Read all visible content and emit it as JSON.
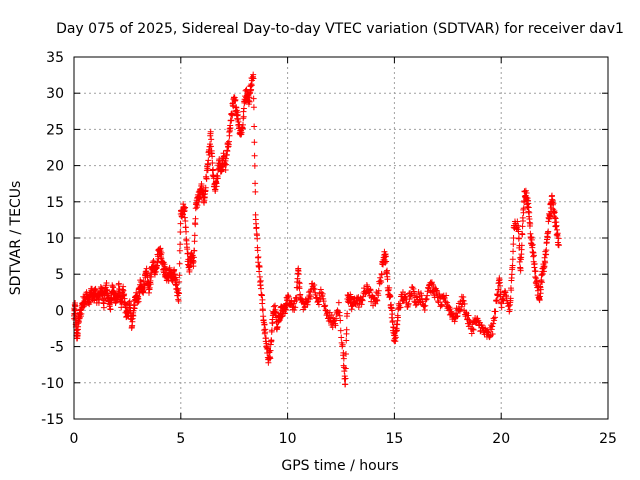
{
  "chart_data": {
    "type": "scatter",
    "title": "Day 075 of 2025, Sidereal Day-to-day VTEC variation (SDTVAR) for receiver dav1",
    "xlabel": "GPS time / hours",
    "ylabel": "SDTVAR / TECUs",
    "xlim": [
      0,
      25
    ],
    "ylim": [
      -15,
      35
    ],
    "x_ticks": [
      0,
      5,
      10,
      15,
      20,
      25
    ],
    "y_ticks": [
      -15,
      -10,
      -5,
      0,
      5,
      10,
      15,
      20,
      25,
      30,
      35
    ],
    "x_tick_labels": [
      "0",
      "5",
      "10",
      "15",
      "20",
      "25"
    ],
    "y_tick_labels": [
      "-15",
      "-10",
      "-5",
      "0",
      "5",
      "10",
      "15",
      "20",
      "25",
      "30",
      "35"
    ],
    "grid": true,
    "marker": "+",
    "series": [
      {
        "name": "SDTVAR",
        "color": "#ff0000",
        "anchors": [
          [
            0.0,
            -1.0
          ],
          [
            0.05,
            0.5
          ],
          [
            0.1,
            -2.5
          ],
          [
            0.15,
            -4.0
          ],
          [
            0.2,
            -1.5
          ],
          [
            0.3,
            -0.5
          ],
          [
            0.4,
            1.0
          ],
          [
            0.5,
            1.5
          ],
          [
            0.6,
            2.0
          ],
          [
            0.7,
            1.2
          ],
          [
            0.8,
            2.5
          ],
          [
            0.9,
            1.8
          ],
          [
            1.0,
            2.5
          ],
          [
            1.1,
            1.5
          ],
          [
            1.2,
            2.0
          ],
          [
            1.3,
            3.0
          ],
          [
            1.4,
            1.0
          ],
          [
            1.5,
            3.5
          ],
          [
            1.6,
            2.0
          ],
          [
            1.7,
            0.5
          ],
          [
            1.8,
            3.0
          ],
          [
            1.9,
            2.0
          ],
          [
            2.0,
            1.5
          ],
          [
            2.1,
            3.0
          ],
          [
            2.2,
            1.0
          ],
          [
            2.3,
            2.5
          ],
          [
            2.4,
            0.5
          ],
          [
            2.5,
            -1.0
          ],
          [
            2.6,
            1.0
          ],
          [
            2.7,
            -2.0
          ],
          [
            2.8,
            0.5
          ],
          [
            2.9,
            2.0
          ],
          [
            3.0,
            1.5
          ],
          [
            3.1,
            3.5
          ],
          [
            3.2,
            2.5
          ],
          [
            3.3,
            4.0
          ],
          [
            3.4,
            5.0
          ],
          [
            3.5,
            3.0
          ],
          [
            3.6,
            4.5
          ],
          [
            3.7,
            6.5
          ],
          [
            3.8,
            5.5
          ],
          [
            3.9,
            7.0
          ],
          [
            4.0,
            8.5
          ],
          [
            4.1,
            7.5
          ],
          [
            4.2,
            6.0
          ],
          [
            4.3,
            5.0
          ],
          [
            4.4,
            4.5
          ],
          [
            4.5,
            5.5
          ],
          [
            4.6,
            4.0
          ],
          [
            4.7,
            5.0
          ],
          [
            4.8,
            3.5
          ],
          [
            4.9,
            1.5
          ],
          [
            5.0,
            13.0
          ],
          [
            5.1,
            14.0
          ],
          [
            5.2,
            13.5
          ],
          [
            5.3,
            8.0
          ],
          [
            5.4,
            6.0
          ],
          [
            5.5,
            7.5
          ],
          [
            5.6,
            6.5
          ],
          [
            5.7,
            14.0
          ],
          [
            5.8,
            15.5
          ],
          [
            5.9,
            16.0
          ],
          [
            6.0,
            17.0
          ],
          [
            6.1,
            15.0
          ],
          [
            6.2,
            18.5
          ],
          [
            6.3,
            21.0
          ],
          [
            6.4,
            24.0
          ],
          [
            6.5,
            19.0
          ],
          [
            6.6,
            16.5
          ],
          [
            6.7,
            18.0
          ],
          [
            6.8,
            20.5
          ],
          [
            6.9,
            19.5
          ],
          [
            7.0,
            21.0
          ],
          [
            7.1,
            20.0
          ],
          [
            7.2,
            22.5
          ],
          [
            7.3,
            25.0
          ],
          [
            7.4,
            27.5
          ],
          [
            7.5,
            29.0
          ],
          [
            7.6,
            28.0
          ],
          [
            7.7,
            26.0
          ],
          [
            7.8,
            24.5
          ],
          [
            7.9,
            25.5
          ],
          [
            8.0,
            29.5
          ],
          [
            8.1,
            30.0
          ],
          [
            8.2,
            29.0
          ],
          [
            8.3,
            31.5
          ],
          [
            8.4,
            32.0
          ],
          [
            8.5,
            14.0
          ],
          [
            8.6,
            8.0
          ],
          [
            8.7,
            5.0
          ],
          [
            8.8,
            1.5
          ],
          [
            8.9,
            -2.0
          ],
          [
            9.0,
            -4.5
          ],
          [
            9.1,
            -6.5
          ],
          [
            9.2,
            -6.0
          ],
          [
            9.3,
            -1.0
          ],
          [
            9.4,
            0.5
          ],
          [
            9.5,
            -2.0
          ],
          [
            9.6,
            -1.0
          ],
          [
            9.7,
            0.0
          ],
          [
            9.8,
            -0.5
          ],
          [
            9.9,
            0.5
          ],
          [
            10.0,
            1.5
          ],
          [
            10.2,
            0.5
          ],
          [
            10.4,
            1.0
          ],
          [
            10.5,
            6.0
          ],
          [
            10.6,
            1.5
          ],
          [
            10.8,
            0.5
          ],
          [
            11.0,
            2.0
          ],
          [
            11.2,
            3.5
          ],
          [
            11.4,
            1.0
          ],
          [
            11.6,
            2.5
          ],
          [
            11.8,
            -0.5
          ],
          [
            12.0,
            -1.0
          ],
          [
            12.2,
            -2.0
          ],
          [
            12.4,
            0.5
          ],
          [
            12.6,
            -6.0
          ],
          [
            12.7,
            -10.0
          ],
          [
            12.8,
            1.5
          ],
          [
            12.9,
            2.0
          ],
          [
            13.0,
            0.5
          ],
          [
            13.2,
            1.5
          ],
          [
            13.4,
            1.0
          ],
          [
            13.6,
            2.5
          ],
          [
            13.8,
            3.0
          ],
          [
            14.0,
            1.0
          ],
          [
            14.2,
            2.0
          ],
          [
            14.4,
            5.0
          ],
          [
            14.5,
            8.0
          ],
          [
            14.6,
            7.0
          ],
          [
            14.7,
            3.0
          ],
          [
            14.8,
            2.0
          ],
          [
            14.9,
            -1.0
          ],
          [
            15.0,
            -4.0
          ],
          [
            15.1,
            -3.0
          ],
          [
            15.2,
            0.5
          ],
          [
            15.4,
            2.0
          ],
          [
            15.6,
            1.0
          ],
          [
            15.8,
            3.0
          ],
          [
            16.0,
            1.5
          ],
          [
            16.2,
            2.0
          ],
          [
            16.4,
            0.5
          ],
          [
            16.6,
            3.5
          ],
          [
            16.8,
            3.0
          ],
          [
            17.0,
            2.0
          ],
          [
            17.2,
            1.0
          ],
          [
            17.4,
            1.5
          ],
          [
            17.6,
            0.0
          ],
          [
            17.8,
            -1.0
          ],
          [
            18.0,
            0.0
          ],
          [
            18.2,
            1.5
          ],
          [
            18.4,
            -1.0
          ],
          [
            18.6,
            -2.5
          ],
          [
            18.8,
            -1.5
          ],
          [
            19.0,
            -2.0
          ],
          [
            19.2,
            -3.0
          ],
          [
            19.4,
            -3.5
          ],
          [
            19.6,
            -2.5
          ],
          [
            19.8,
            1.5
          ],
          [
            19.9,
            4.5
          ],
          [
            20.0,
            1.0
          ],
          [
            20.2,
            2.0
          ],
          [
            20.4,
            0.0
          ],
          [
            20.5,
            4.5
          ],
          [
            20.6,
            12.0
          ],
          [
            20.8,
            11.5
          ],
          [
            20.9,
            5.5
          ],
          [
            21.0,
            11.5
          ],
          [
            21.1,
            16.5
          ],
          [
            21.2,
            15.5
          ],
          [
            21.3,
            13.5
          ],
          [
            21.4,
            10.0
          ],
          [
            21.5,
            8.0
          ],
          [
            21.6,
            5.0
          ],
          [
            21.7,
            3.0
          ],
          [
            21.8,
            2.0
          ],
          [
            21.9,
            4.5
          ],
          [
            22.0,
            6.0
          ],
          [
            22.1,
            8.0
          ],
          [
            22.2,
            11.5
          ],
          [
            22.3,
            14.0
          ],
          [
            22.4,
            15.5
          ],
          [
            22.5,
            13.0
          ],
          [
            22.6,
            11.0
          ],
          [
            22.7,
            9.0
          ]
        ]
      }
    ]
  }
}
